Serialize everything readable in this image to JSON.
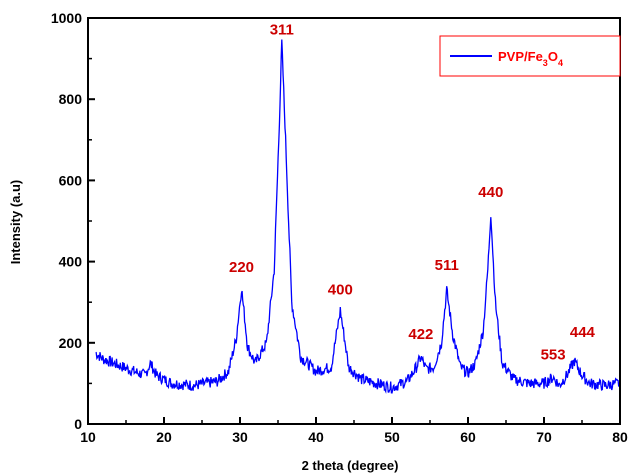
{
  "chart_data": {
    "type": "line",
    "title": "",
    "xlabel": "2 theta (degree)",
    "ylabel": "Intensity (a.u)",
    "xlim": [
      10,
      80
    ],
    "ylim": [
      0,
      1000
    ],
    "xticks": [
      10,
      20,
      30,
      40,
      50,
      60,
      70,
      80
    ],
    "yticks": [
      0,
      200,
      400,
      600,
      800,
      1000
    ],
    "grid": false,
    "legend_position": "top-right",
    "colors": {
      "series": "#0000ff",
      "peak_labels": "#cc0000",
      "legend_text": "#ff0000",
      "legend_border": "#ff0000"
    },
    "series": [
      {
        "name": "PVP/Fe3O4",
        "legend_base": "PVP/Fe",
        "legend_sub1": "3",
        "legend_mid": "O",
        "legend_sub2": "4",
        "x": [
          11,
          12,
          14,
          16,
          17.5,
          18.2,
          19,
          21,
          24,
          27,
          28.5,
          29.5,
          30.2,
          31,
          32,
          33.5,
          34.5,
          35.1,
          35.5,
          36,
          36.8,
          38,
          40,
          42,
          43.2,
          44.3,
          46,
          48,
          50,
          52,
          53.2,
          53.8,
          54.5,
          55.5,
          56.5,
          57.2,
          58,
          59,
          60,
          61,
          62,
          62.6,
          63,
          63.6,
          64.5,
          66,
          68,
          70,
          71.2,
          72,
          73,
          74,
          75,
          76,
          78,
          80
        ],
        "y": [
          175,
          160,
          145,
          130,
          120,
          150,
          120,
          100,
          95,
          105,
          130,
          210,
          335,
          190,
          150,
          200,
          380,
          700,
          940,
          700,
          300,
          165,
          130,
          140,
          280,
          140,
          110,
          100,
          90,
          105,
          140,
          165,
          135,
          140,
          200,
          330,
          220,
          140,
          125,
          150,
          230,
          380,
          520,
          300,
          150,
          110,
          100,
          100,
          115,
          95,
          120,
          155,
          120,
          100,
          95,
          100
        ]
      }
    ],
    "annotations": [
      {
        "text": "311",
        "x": 35.5,
        "y": 940
      },
      {
        "text": "220",
        "x": 30.2,
        "y": 335
      },
      {
        "text": "400",
        "x": 43.2,
        "y": 280
      },
      {
        "text": "422",
        "x": 53.8,
        "y": 165
      },
      {
        "text": "511",
        "x": 57.2,
        "y": 330
      },
      {
        "text": "440",
        "x": 63.0,
        "y": 520
      },
      {
        "text": "553",
        "x": 71.2,
        "y": 115
      },
      {
        "text": "444",
        "x": 74.0,
        "y": 155
      }
    ]
  }
}
